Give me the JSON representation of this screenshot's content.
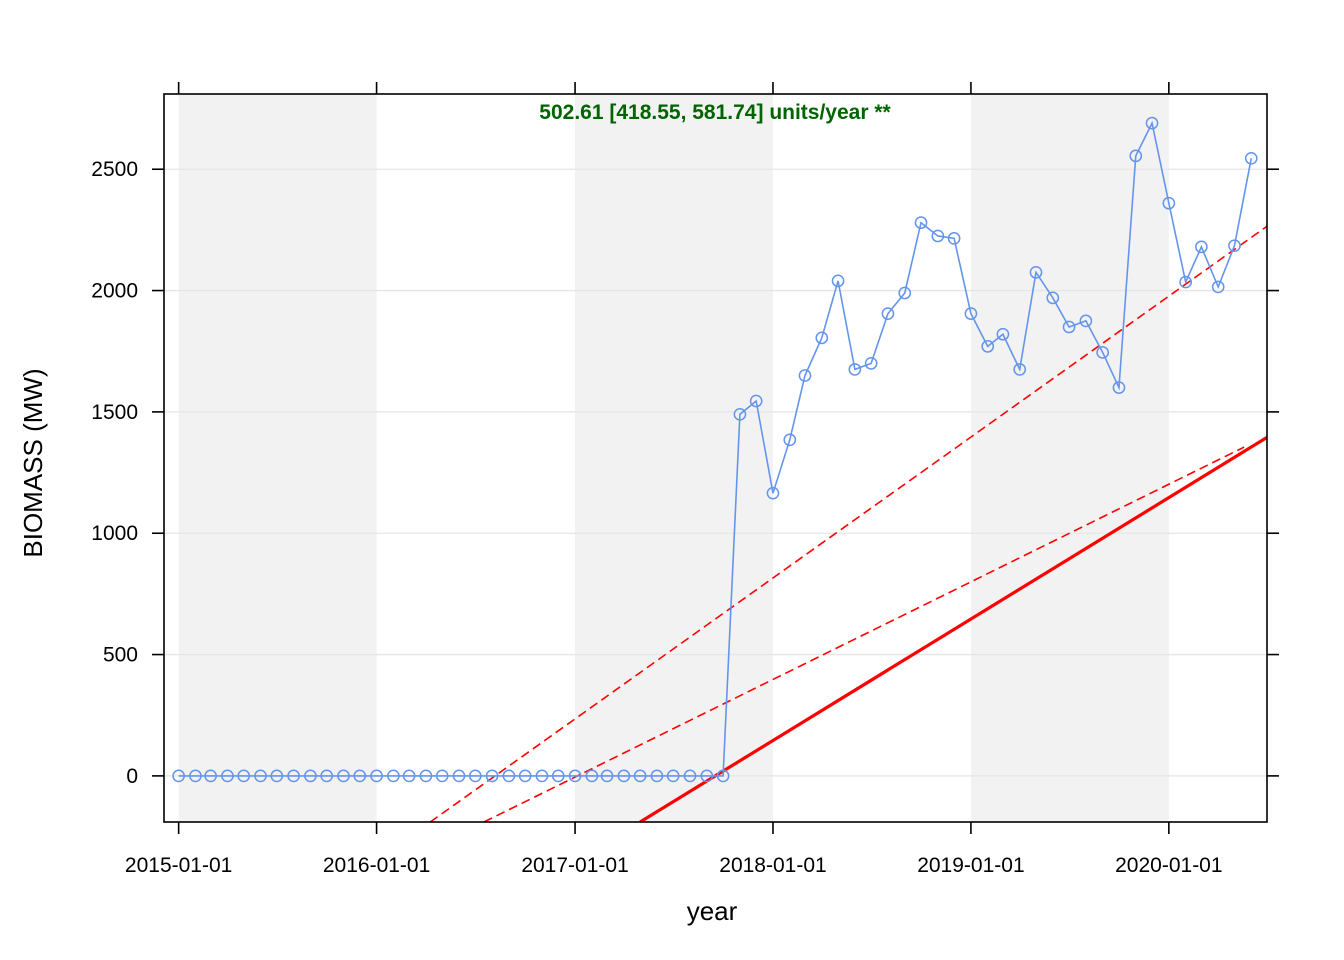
{
  "chart_data": {
    "type": "line",
    "title": "",
    "xlabel": "year",
    "ylabel": "BIOMASS (MW)",
    "annotation": "502.61 [418.55, 581.74] units/year **",
    "xlim": [
      "2014-12-05",
      "2020-06-30"
    ],
    "ylim": [
      -190,
      2810
    ],
    "x_ticks": [
      "2015-01-01",
      "2016-01-01",
      "2017-01-01",
      "2018-01-01",
      "2019-01-01",
      "2020-01-01"
    ],
    "y_ticks": [
      0,
      500,
      1000,
      1500,
      2000,
      2500
    ],
    "grid": "horizontal",
    "shaded_year_bands": [
      [
        "2015-01-01",
        "2016-01-01"
      ],
      [
        "2017-01-01",
        "2018-01-01"
      ],
      [
        "2019-01-01",
        "2020-01-01"
      ]
    ],
    "colors": {
      "series": "#6495ED",
      "trend": "#FF0000",
      "annotation": "#006400",
      "band": "#F2F2F2",
      "grid": "#E6E6E6"
    },
    "series": [
      {
        "x": [
          "2015-01-01",
          "2015-02-01",
          "2015-03-01",
          "2015-04-01",
          "2015-05-01",
          "2015-06-01",
          "2015-07-01",
          "2015-08-01",
          "2015-09-01",
          "2015-10-01",
          "2015-11-01",
          "2015-12-01",
          "2016-01-01",
          "2016-02-01",
          "2016-03-01",
          "2016-04-01",
          "2016-05-01",
          "2016-06-01",
          "2016-07-01",
          "2016-08-01",
          "2016-09-01",
          "2016-10-01",
          "2016-11-01",
          "2016-12-01",
          "2017-01-01",
          "2017-02-01",
          "2017-03-01",
          "2017-04-01",
          "2017-05-01",
          "2017-06-01",
          "2017-07-01",
          "2017-08-01",
          "2017-09-01",
          "2017-10-01",
          "2017-11-01",
          "2017-12-01",
          "2018-01-01",
          "2018-02-01",
          "2018-03-01",
          "2018-04-01",
          "2018-05-01",
          "2018-06-01",
          "2018-07-01",
          "2018-08-01",
          "2018-09-01",
          "2018-10-01",
          "2018-11-01",
          "2018-12-01",
          "2019-01-01",
          "2019-02-01",
          "2019-03-01",
          "2019-04-01",
          "2019-05-01",
          "2019-06-01",
          "2019-07-01",
          "2019-08-01",
          "2019-09-01",
          "2019-10-01",
          "2019-11-01",
          "2019-12-01",
          "2020-01-01",
          "2020-02-01",
          "2020-03-01",
          "2020-04-01",
          "2020-05-01",
          "2020-06-01"
        ],
        "values": [
          0,
          0,
          0,
          0,
          0,
          0,
          0,
          0,
          0,
          0,
          0,
          0,
          0,
          0,
          0,
          0,
          0,
          0,
          0,
          0,
          0,
          0,
          0,
          0,
          0,
          0,
          0,
          0,
          0,
          0,
          0,
          0,
          0,
          0,
          1490,
          1545,
          1165,
          1385,
          1650,
          1805,
          2040,
          1675,
          1700,
          1905,
          1990,
          2280,
          2225,
          2215,
          1905,
          1770,
          1820,
          1675,
          2075,
          1970,
          1850,
          1875,
          1745,
          1600,
          2555,
          2690,
          2360,
          2035,
          2180,
          2015,
          2185,
          2545
        ]
      }
    ],
    "trend_lines": [
      {
        "style": "solid",
        "x": [
          "2017-05-01",
          "2020-06-30"
        ],
        "y": [
          -190,
          1395
        ]
      },
      {
        "style": "dashed",
        "x": [
          "2016-04-09",
          "2020-06-30"
        ],
        "y": [
          -190,
          2265
        ]
      },
      {
        "style": "dashed",
        "x": [
          "2016-07-17",
          "2020-05-19"
        ],
        "y": [
          -190,
          1355
        ]
      }
    ]
  }
}
